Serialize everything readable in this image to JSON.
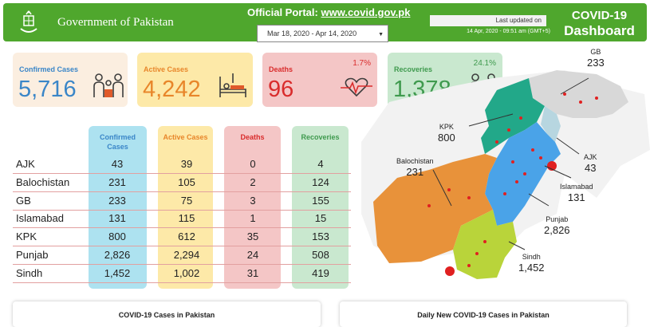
{
  "header": {
    "government": "Government of Pakistan",
    "portal_label": "Official Portal:",
    "portal_link": "www.covid.gov.pk",
    "date_range": "Mar 18, 2020 - Apr 14, 2020",
    "last_updated_label": "Last updated on",
    "last_updated_time": "14 Apr, 2020 - 09:51 am (GMT+5)",
    "title_line1": "COVID-19",
    "title_line2": "Dashboard",
    "color": "#4fa72d"
  },
  "cards": [
    {
      "label": "Confirmed Cases",
      "value": "5,716",
      "pct": "",
      "bg": "#fbeee0",
      "label_color": "#3a86c8",
      "value_color": "#3a86c8",
      "icon": "family-icon"
    },
    {
      "label": "Active Cases",
      "value": "4,242",
      "pct": "",
      "bg": "#fde9a8",
      "label_color": "#e8862a",
      "value_color": "#e8862a",
      "icon": "hospital-bed-icon"
    },
    {
      "label": "Deaths",
      "value": "96",
      "pct": "1.7%",
      "bg": "#f4c6c6",
      "label_color": "#d92c2c",
      "value_color": "#d92c2c",
      "icon": "heartbeat-icon"
    },
    {
      "label": "Recoveries",
      "value": "1,378",
      "pct": "24.1%",
      "bg": "#c9e8cf",
      "label_color": "#3f9a4e",
      "value_color": "#3f9a4e",
      "icon": "recovered-people-icon"
    }
  ],
  "table": {
    "headers": [
      {
        "label": "Confirmed Cases",
        "bg": "#ade2f0",
        "color": "#3a86c8"
      },
      {
        "label": "Active Cases",
        "bg": "#fde9a8",
        "color": "#e8862a"
      },
      {
        "label": "Deaths",
        "bg": "#f4c6c6",
        "color": "#d92c2c"
      },
      {
        "label": "Recoveries",
        "bg": "#c9e8cf",
        "color": "#3f9a4e"
      }
    ],
    "rows": [
      {
        "region": "AJK",
        "values": [
          "43",
          "39",
          "0",
          "4"
        ]
      },
      {
        "region": "Balochistan",
        "values": [
          "231",
          "105",
          "2",
          "124"
        ]
      },
      {
        "region": "GB",
        "values": [
          "233",
          "75",
          "3",
          "155"
        ]
      },
      {
        "region": "Islamabad",
        "values": [
          "131",
          "115",
          "1",
          "15"
        ]
      },
      {
        "region": "KPK",
        "values": [
          "800",
          "612",
          "35",
          "153"
        ]
      },
      {
        "region": "Punjab",
        "values": [
          "2,826",
          "2,294",
          "24",
          "508"
        ]
      },
      {
        "region": "Sindh",
        "values": [
          "1,452",
          "1,002",
          "31",
          "419"
        ]
      }
    ]
  },
  "map": {
    "labels": [
      {
        "name": "GB",
        "value": "233"
      },
      {
        "name": "KPK",
        "value": "800"
      },
      {
        "name": "AJK",
        "value": "43"
      },
      {
        "name": "Balochistan",
        "value": "231"
      },
      {
        "name": "Islamabad",
        "value": "131"
      },
      {
        "name": "Punjab",
        "value": "2,826"
      },
      {
        "name": "Sindh",
        "value": "1,452"
      }
    ],
    "colors": {
      "gb": "#d8d8d8",
      "kpk": "#22a889",
      "punjab": "#4aa3e8",
      "balochistan": "#e8923a",
      "sindh": "#b9d43a",
      "dot": "#e02020"
    }
  },
  "panels": [
    {
      "title": "COVID-19 Cases in Pakistan"
    },
    {
      "title": "Daily New COVID-19 Cases in Pakistan"
    }
  ]
}
